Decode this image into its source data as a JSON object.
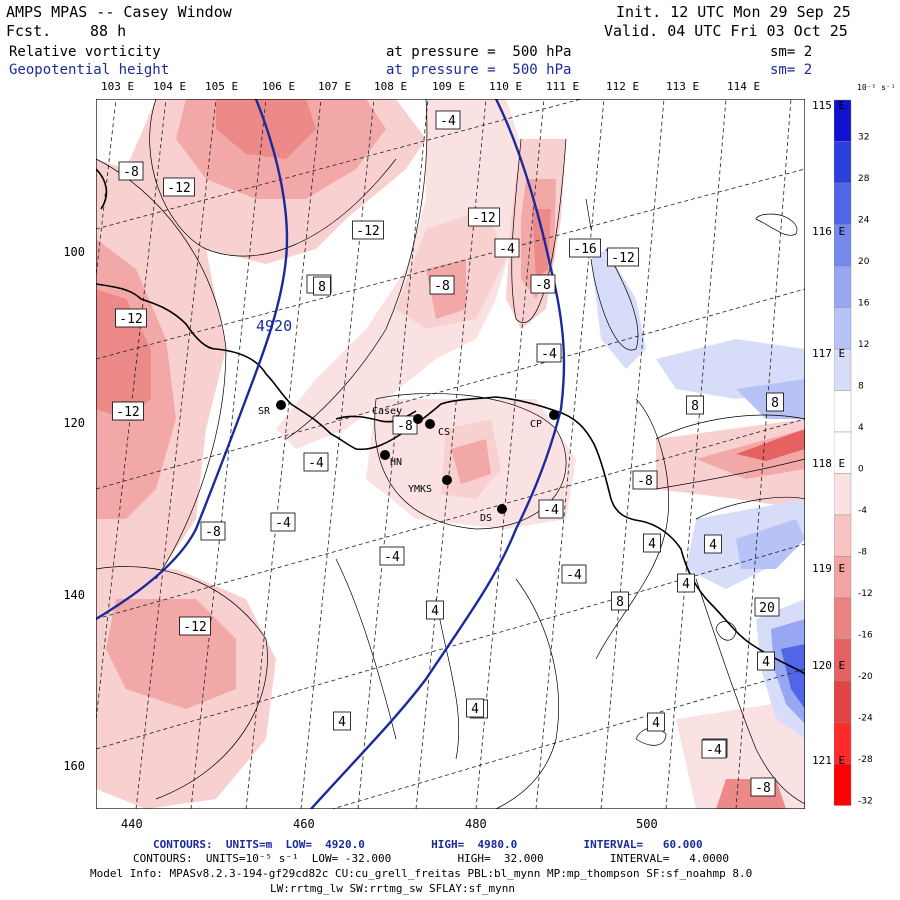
{
  "header": {
    "title": "AMPS MPAS -- Casey Window",
    "fcst_label": "Fcst.",
    "fcst_value": "88 h",
    "init": "Init. 12 UTC Mon 29 Sep 25",
    "valid": "Valid. 04 UTC Fri 03 Oct 25"
  },
  "fields": [
    {
      "name": "Relative vorticity",
      "level": "at pressure =  500 hPa",
      "sm": "sm= 2"
    },
    {
      "name": "Geopotential height",
      "level": "at pressure =  500 hPa",
      "sm": "sm= 2"
    }
  ],
  "lon_labels": [
    "103 E",
    "104 E",
    "105 E",
    "106 E",
    "107 E",
    "108 E",
    "109 E",
    "110 E",
    "111 E",
    "112 E",
    "113 E",
    "114 E"
  ],
  "lat_labels": [
    "115 E",
    "116 E",
    "117 E",
    "118 E",
    "119 E",
    "120 E",
    "121 E"
  ],
  "y_ticks": [
    "100",
    "120",
    "140",
    "160"
  ],
  "x_ticks": [
    "440",
    "460",
    "480",
    "500"
  ],
  "stations": [
    {
      "name": "SR"
    },
    {
      "name": "Casey"
    },
    {
      "name": "CS"
    },
    {
      "name": "HN"
    },
    {
      "name": "YMKS"
    },
    {
      "name": "DS"
    },
    {
      "name": "CP"
    }
  ],
  "height_label": "4920",
  "vort_labels": [
    "-4",
    "-8",
    "-12",
    "-12",
    "-12",
    "-4",
    "-4",
    "-8",
    "-8",
    "-12",
    "-16",
    "-12",
    "8",
    "-4",
    "4",
    "8",
    "8",
    "-8",
    "-4",
    "-4",
    "-8",
    "-4",
    "-8",
    "-4",
    "-4",
    "4",
    "4",
    "4",
    "4",
    "8",
    "4",
    "4",
    "20",
    "4",
    "-4",
    "-8",
    "-12",
    "-12",
    "4",
    "4",
    "-4"
  ],
  "colorbar": {
    "units": "10⁻⁵ s⁻¹",
    "labels": [
      "32",
      "28",
      "24",
      "20",
      "16",
      "12",
      "8",
      "4",
      "0",
      "-4",
      "-8",
      "-12",
      "-16",
      "-20",
      "-24",
      "-28",
      "-32"
    ],
    "colors": [
      "#1010d0",
      "#2a3fdc",
      "#4f66e8",
      "#7488ee",
      "#97a7f2",
      "#b7c2f6",
      "#d7ddf9",
      "#ffffff",
      "#ffffff",
      "#fbe2e2",
      "#f7c3c3",
      "#f3a3a3",
      "#ec8383",
      "#e66262",
      "#e04444",
      "#ff2a2a",
      "#ff0000"
    ]
  },
  "footer": {
    "line1": "CONTOURS:  UNITS=m  LOW=  4920.0          HIGH=  4980.0          INTERVAL=   60.000",
    "line2": "CONTOURS:  UNITS=10⁻⁵ s⁻¹  LOW= -32.000          HIGH=  32.000          INTERVAL=   4.0000",
    "line3": "Model Info: MPASv8.2.3-194-gf29cd82c CU:cu_grell_freitas PBL:bl_mynn MP:mp_thompson SF:sf_noahmp 8.0",
    "line4": "LW:rrtmg_lw SW:rrtmg_sw SFLAY:sf_mynn"
  }
}
